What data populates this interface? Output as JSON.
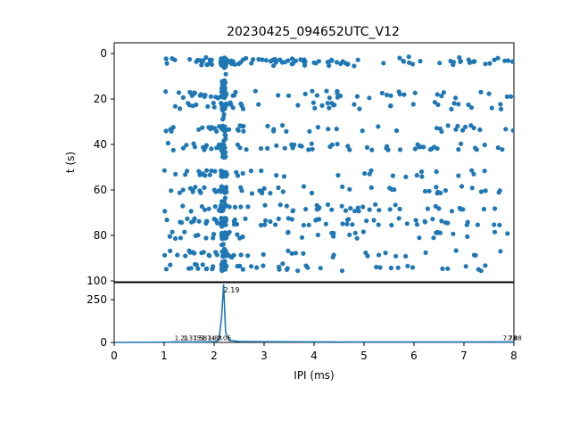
{
  "figure": {
    "title": "20230425_094652UTC_V12"
  },
  "chart_data": [
    {
      "type": "scatter",
      "title": "20230425_094652UTC_V12",
      "ylabel": "t (s)",
      "xlabel": "",
      "xlim": [
        0,
        8
      ],
      "ylim": [
        100,
        0
      ],
      "y_inverted": true,
      "yticks": [
        "0",
        "20",
        "40",
        "60",
        "80",
        "100"
      ],
      "color": "#1f77b4",
      "marker": "filled-circle",
      "bursts_t": [
        3,
        4,
        18,
        23,
        33,
        41,
        53,
        60,
        68,
        74,
        80,
        88,
        94
      ],
      "dense_column_x": 2.19
    },
    {
      "type": "line",
      "xlabel": "IPI (ms)",
      "ylabel": "",
      "xlim": [
        0,
        8
      ],
      "ylim": [
        0,
        350
      ],
      "xticks": [
        "0",
        "1",
        "2",
        "3",
        "4",
        "5",
        "6",
        "7",
        "8"
      ],
      "yticks": [
        "0",
        "250"
      ],
      "color": "#1f77b4",
      "peak": {
        "x": 2.19,
        "y": 340,
        "label": "2.19"
      },
      "x": [
        0,
        1.0,
        1.2,
        1.5,
        1.8,
        2.0,
        2.06,
        2.1,
        2.15,
        2.19,
        2.23,
        2.3,
        2.5,
        3.0,
        4.0,
        5.0,
        6.0,
        7.0,
        7.88,
        8.0
      ],
      "y": [
        0,
        1,
        2,
        2,
        3,
        4,
        6,
        25,
        150,
        340,
        60,
        12,
        6,
        4,
        3,
        2,
        2,
        2,
        3,
        2
      ],
      "annotations": [
        {
          "x": 1.21,
          "label": "1.21"
        },
        {
          "x": 1.375,
          "label": "1.375"
        },
        {
          "x": 1.58,
          "label": "1.58"
        },
        {
          "x": 1.74,
          "label": "1.74"
        },
        {
          "x": 1.88,
          "label": "1.88"
        },
        {
          "x": 2.06,
          "label": "2.06"
        },
        {
          "x": 7.78,
          "label": "7.78"
        },
        {
          "x": 7.88,
          "label": "7.88"
        }
      ]
    }
  ]
}
